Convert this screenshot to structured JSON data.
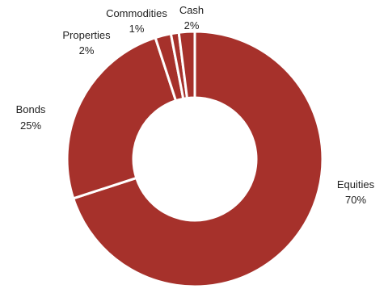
{
  "chart_data": {
    "type": "pie",
    "style": "donut",
    "categories": [
      "Equities",
      "Bonds",
      "Properties",
      "Commodities",
      "Cash"
    ],
    "values": [
      70,
      25,
      2,
      1,
      2
    ],
    "value_labels": [
      "70%",
      "25%",
      "2%",
      "1%",
      "2%"
    ],
    "title": "",
    "legend": "none",
    "colors": {
      "slice": "#a6312b",
      "separator": "#ffffff"
    }
  }
}
